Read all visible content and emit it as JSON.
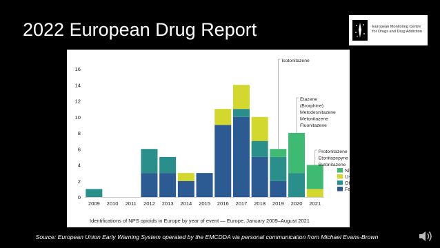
{
  "slide": {
    "title": "2022 European Drug Report",
    "logo_text_line1": "European Monitoring Centre",
    "logo_text_line2": "for Drugs and Drug Addiction",
    "source_note": "Source: European Union Early Warning System operated by the EMCDDA via personal communication from Michael Evans-Brown"
  },
  "colors": {
    "Nitazenes": "#3fba72",
    "U-opioids": "#d2d82e",
    "Others": "#2a8f8a",
    "Fentanils": "#2c5a92",
    "background": "#000000",
    "panel": "#ffffff"
  },
  "icons": {
    "logo": "emcdda-logo-icon",
    "speaker": "speaker-icon"
  },
  "chart_data": {
    "type": "bar",
    "stacked": true,
    "title": "",
    "caption": "Identifications of NPS opioids in Europe by year of event — Europe, January 2009–August 2021",
    "xlabel": "",
    "ylabel": "",
    "ylim": [
      0,
      16
    ],
    "yticks": [
      0,
      2,
      4,
      6,
      8,
      10,
      12,
      14,
      16
    ],
    "categories": [
      "2009",
      "2010",
      "2011",
      "2012",
      "2013",
      "2014",
      "2015",
      "2016",
      "2017",
      "2018",
      "2019",
      "2020",
      "2021"
    ],
    "series": [
      {
        "name": "Fentanils",
        "values": [
          0,
          0,
          0,
          3,
          3,
          2,
          3,
          9,
          10,
          5,
          2,
          0,
          0
        ]
      },
      {
        "name": "Others",
        "values": [
          1,
          0,
          0,
          3,
          2,
          0,
          0,
          0,
          1,
          2,
          3,
          3,
          0
        ]
      },
      {
        "name": "U-opioids",
        "values": [
          0,
          0,
          0,
          0,
          0,
          1,
          0,
          2,
          3,
          3,
          0,
          0,
          1
        ]
      },
      {
        "name": "Nitazenes",
        "values": [
          0,
          0,
          0,
          0,
          0,
          0,
          0,
          0,
          0,
          0,
          1,
          5,
          3
        ]
      }
    ],
    "legend": {
      "position": "right",
      "entries": [
        "Nitazenes",
        "U-opioids",
        "Others",
        "Fentanils"
      ]
    },
    "grid": false,
    "annotations": [
      {
        "year": "2019",
        "lines": [
          "Isotonitazene"
        ]
      },
      {
        "year": "2020",
        "lines": [
          "Etazene",
          "(Brorphine)",
          "Metodesnitazene",
          "Metonitazene",
          "Fluonitazene"
        ]
      },
      {
        "year": "2021",
        "lines": [
          "Protonitazene",
          "Etonitazepyne",
          "Butonitazene"
        ]
      }
    ]
  }
}
